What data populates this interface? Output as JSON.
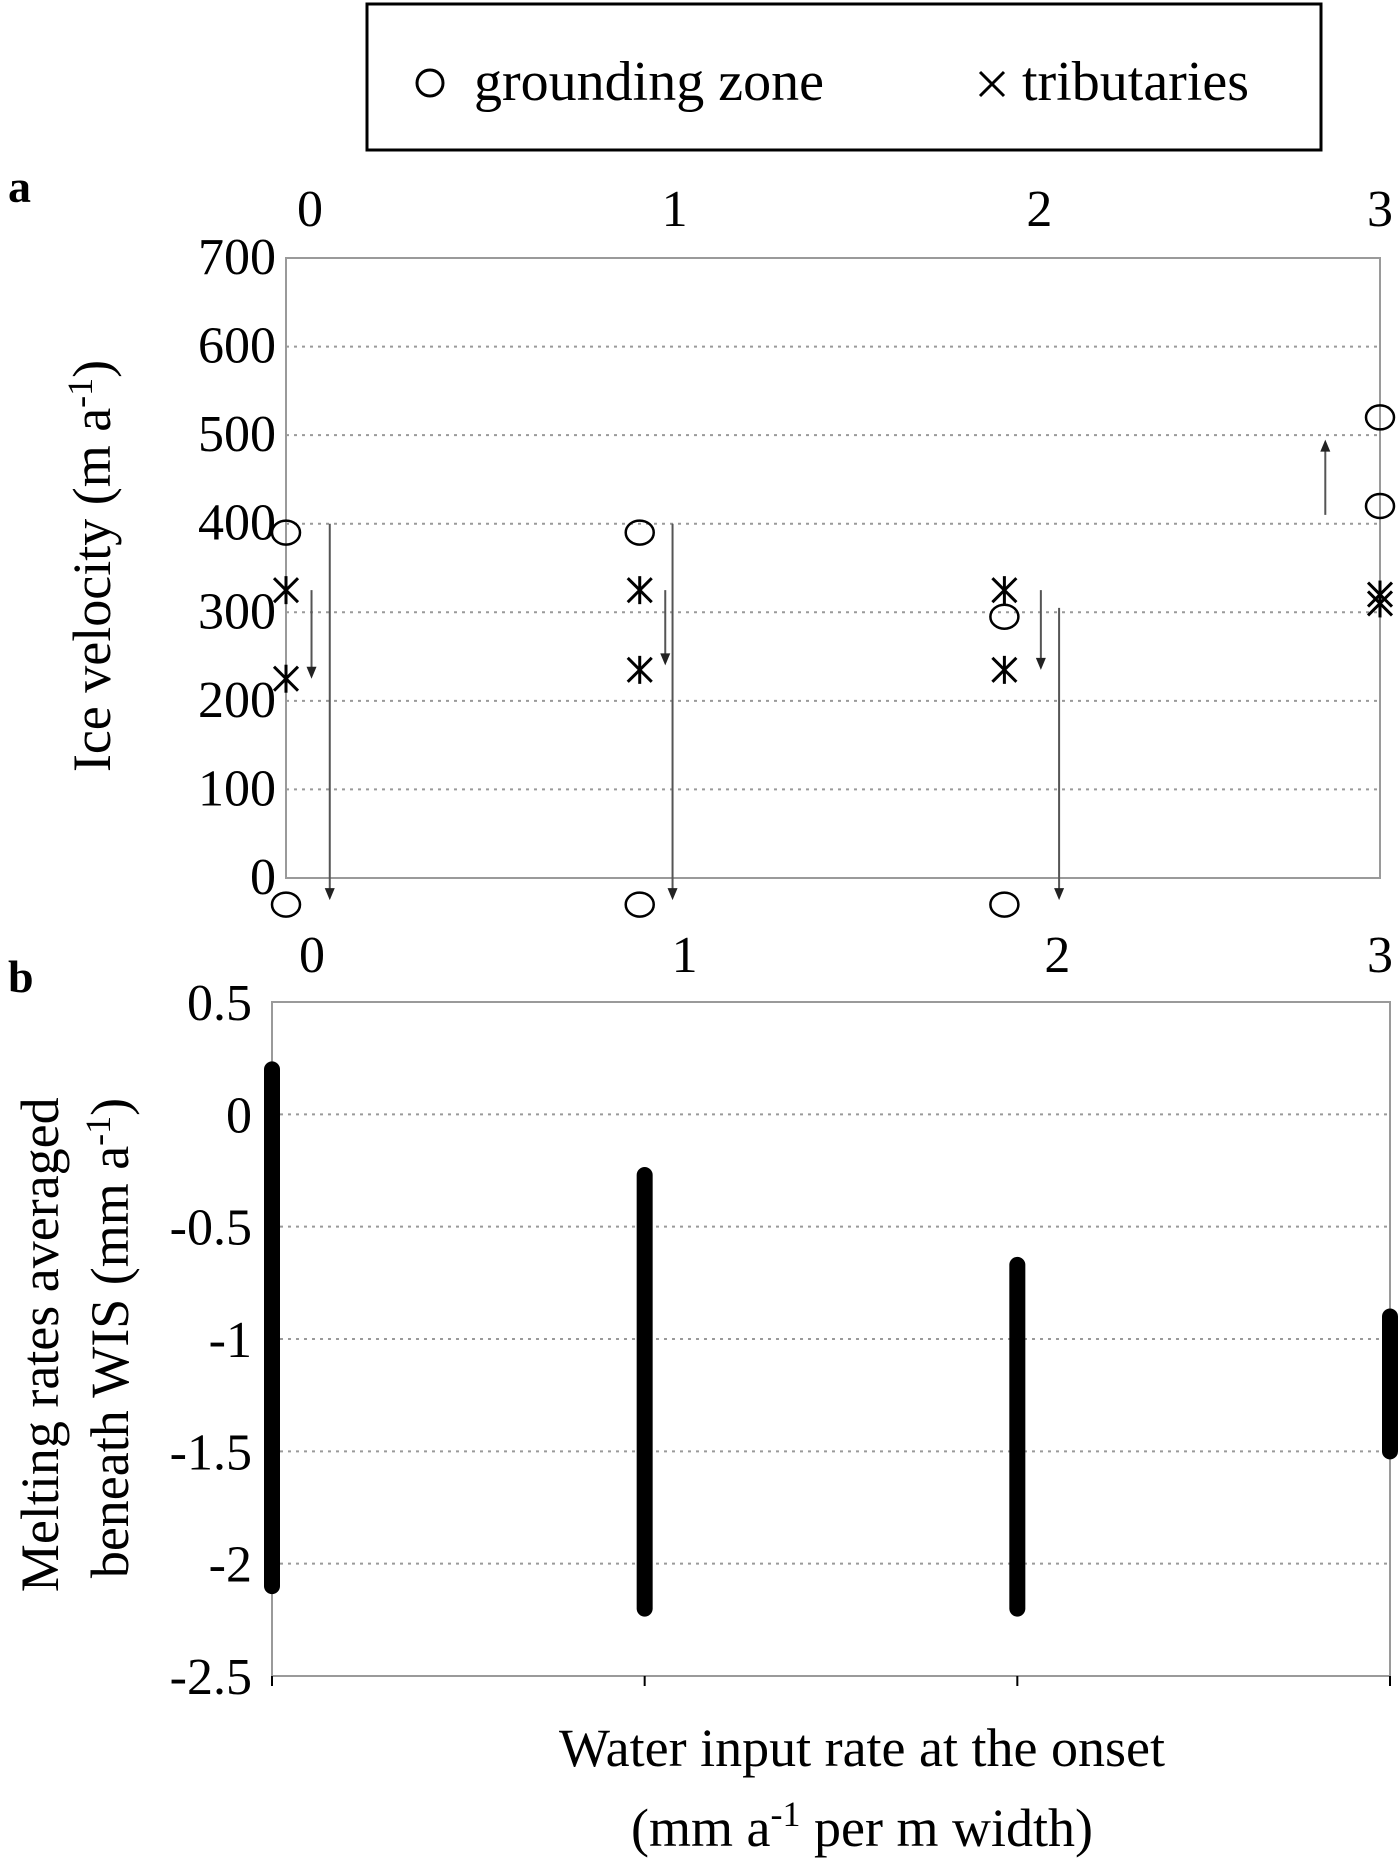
{
  "legend": {
    "grounding_zone": "grounding zone",
    "tributaries": "tributaries"
  },
  "chart_data": [
    {
      "panel": "a",
      "type": "scatter",
      "x_ticks": [
        "0",
        "1",
        "2",
        "3"
      ],
      "xlim": [
        0,
        3
      ],
      "ylim": [
        0,
        700
      ],
      "y_ticks": [
        "700",
        "600",
        "500",
        "400",
        "300",
        "200",
        "100",
        "0"
      ],
      "ylabel": "Ice velocity (m a",
      "ylabel_sup": "-1",
      "ylabel_end": ")",
      "grid": true,
      "series": [
        {
          "name": "grounding zone",
          "marker": "circle",
          "points": [
            [
              0,
              390
            ],
            [
              0,
              -30
            ],
            [
              0.97,
              390
            ],
            [
              0.97,
              -30
            ],
            [
              1.97,
              295
            ],
            [
              1.97,
              -30
            ],
            [
              3,
              520
            ],
            [
              3,
              420
            ]
          ]
        },
        {
          "name": "tributaries",
          "marker": "asterisk",
          "points": [
            [
              0,
              325
            ],
            [
              0,
              225
            ],
            [
              0.97,
              325
            ],
            [
              0.97,
              235
            ],
            [
              1.97,
              325
            ],
            [
              1.97,
              235
            ],
            [
              3,
              320
            ],
            [
              3,
              310
            ]
          ]
        }
      ],
      "arrows": [
        {
          "x": 0.07,
          "from": 325,
          "to": 225
        },
        {
          "x": 0.12,
          "from": 400,
          "to": -25
        },
        {
          "x": 1.04,
          "from": 325,
          "to": 240
        },
        {
          "x": 1.06,
          "from": 400,
          "to": -25
        },
        {
          "x": 2.07,
          "from": 325,
          "to": 235
        },
        {
          "x": 2.12,
          "from": 305,
          "to": -25
        },
        {
          "x": 2.85,
          "from": 410,
          "to": 495
        }
      ]
    },
    {
      "panel": "b",
      "type": "bar",
      "x_ticks": [
        "0",
        "1",
        "2",
        "3"
      ],
      "xlim": [
        0,
        3
      ],
      "ylim": [
        -2.5,
        0.5
      ],
      "y_ticks": [
        "0.5",
        "0",
        "-0.5",
        "-1",
        "-1.5",
        "-2",
        "-2.5"
      ],
      "ylabel_line1": "Melting rates averaged",
      "ylabel_line2": "beneath WIS (mm a",
      "ylabel_sup": "-1",
      "ylabel_end": ")",
      "grid": true,
      "ranges": [
        {
          "x": 0,
          "low": -2.1,
          "high": 0.2
        },
        {
          "x": 1,
          "low": -2.2,
          "high": -0.27
        },
        {
          "x": 2,
          "low": -2.2,
          "high": -0.67
        },
        {
          "x": 3,
          "low": -1.5,
          "high": -0.9
        }
      ],
      "xlabel_line1": "Water input rate at the onset",
      "xlabel_line2_pre": "(mm a",
      "xlabel_sup": "-1",
      "xlabel_line2_post": " per m width)"
    }
  ]
}
